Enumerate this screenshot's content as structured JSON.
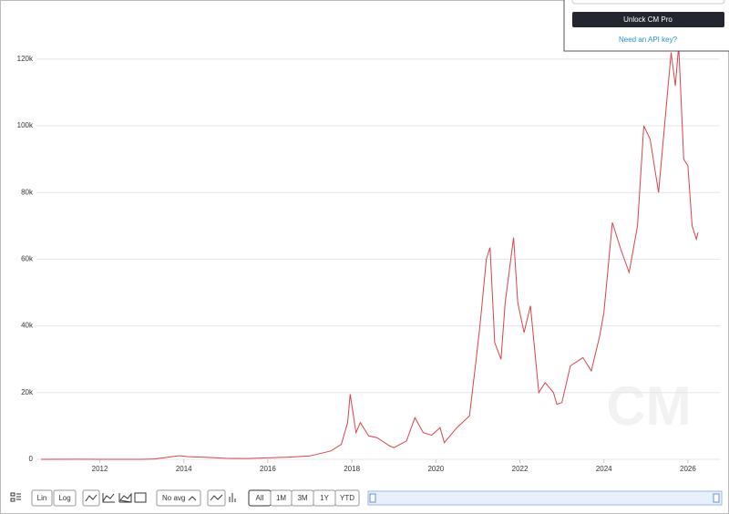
{
  "chart_data": {
    "type": "line",
    "color": "#d9434b",
    "x": [
      2010.6,
      2011.5,
      2012.0,
      2013.0,
      2013.3,
      2013.9,
      2014.1,
      2014.5,
      2015.0,
      2015.5,
      2016.0,
      2016.5,
      2017.0,
      2017.5,
      2017.75,
      2017.9,
      2017.96,
      2018.1,
      2018.2,
      2018.4,
      2018.6,
      2018.9,
      2019.0,
      2019.3,
      2019.5,
      2019.7,
      2019.9,
      2020.1,
      2020.2,
      2020.5,
      2020.8,
      2020.95,
      2021.05,
      2021.2,
      2021.29,
      2021.4,
      2021.55,
      2021.65,
      2021.85,
      2021.95,
      2022.1,
      2022.25,
      2022.45,
      2022.6,
      2022.8,
      2022.88,
      2023.0,
      2023.2,
      2023.5,
      2023.7,
      2023.9,
      2024.0,
      2024.2,
      2024.4,
      2024.6,
      2024.8,
      2024.95,
      2025.1,
      2025.3,
      2025.5,
      2025.6,
      2025.7,
      2025.78,
      2025.9,
      2026.0,
      2026.1,
      2026.2,
      2026.24
    ],
    "values": [
      0.07,
      15,
      5,
      13,
      100,
      1100,
      800,
      600,
      300,
      250,
      430,
      650,
      1000,
      2500,
      4500,
      11000,
      19500,
      8000,
      11000,
      7000,
      6500,
      4000,
      3500,
      5500,
      12500,
      8000,
      7200,
      9500,
      5000,
      9500,
      13000,
      29000,
      40000,
      60000,
      63500,
      35000,
      30000,
      47000,
      66500,
      47000,
      38000,
      46000,
      20000,
      23000,
      20000,
      16500,
      17000,
      28000,
      30500,
      26500,
      37000,
      44000,
      71000,
      63000,
      56000,
      70000,
      100000,
      96000,
      80000,
      108000,
      122000,
      112000,
      124000,
      90000,
      88000,
      70000,
      66000,
      68000
    ],
    "xlim": [
      2010.6,
      2026.24
    ],
    "xticks": [
      2012,
      2014,
      2016,
      2018,
      2020,
      2022,
      2024,
      2026
    ],
    "ylim": [
      0,
      137700
    ],
    "yticks": [
      0,
      {
        "value": 20000,
        "label": "20k"
      },
      {
        "value": 40000,
        "label": "40k"
      },
      {
        "value": 60000,
        "label": "60k"
      },
      {
        "value": 80000,
        "label": "80k"
      },
      {
        "value": 100000,
        "label": "100k"
      },
      {
        "value": 120000,
        "label": "120k"
      }
    ],
    "grid": true
  },
  "toolbar": {
    "scale": [
      "Lin",
      "Log"
    ],
    "average": "No avg",
    "ranges": [
      "All",
      "1M",
      "3M",
      "1Y",
      "YTD"
    ]
  },
  "popup": {
    "button": "Unlock CM Pro",
    "link": "Need an API key?"
  }
}
